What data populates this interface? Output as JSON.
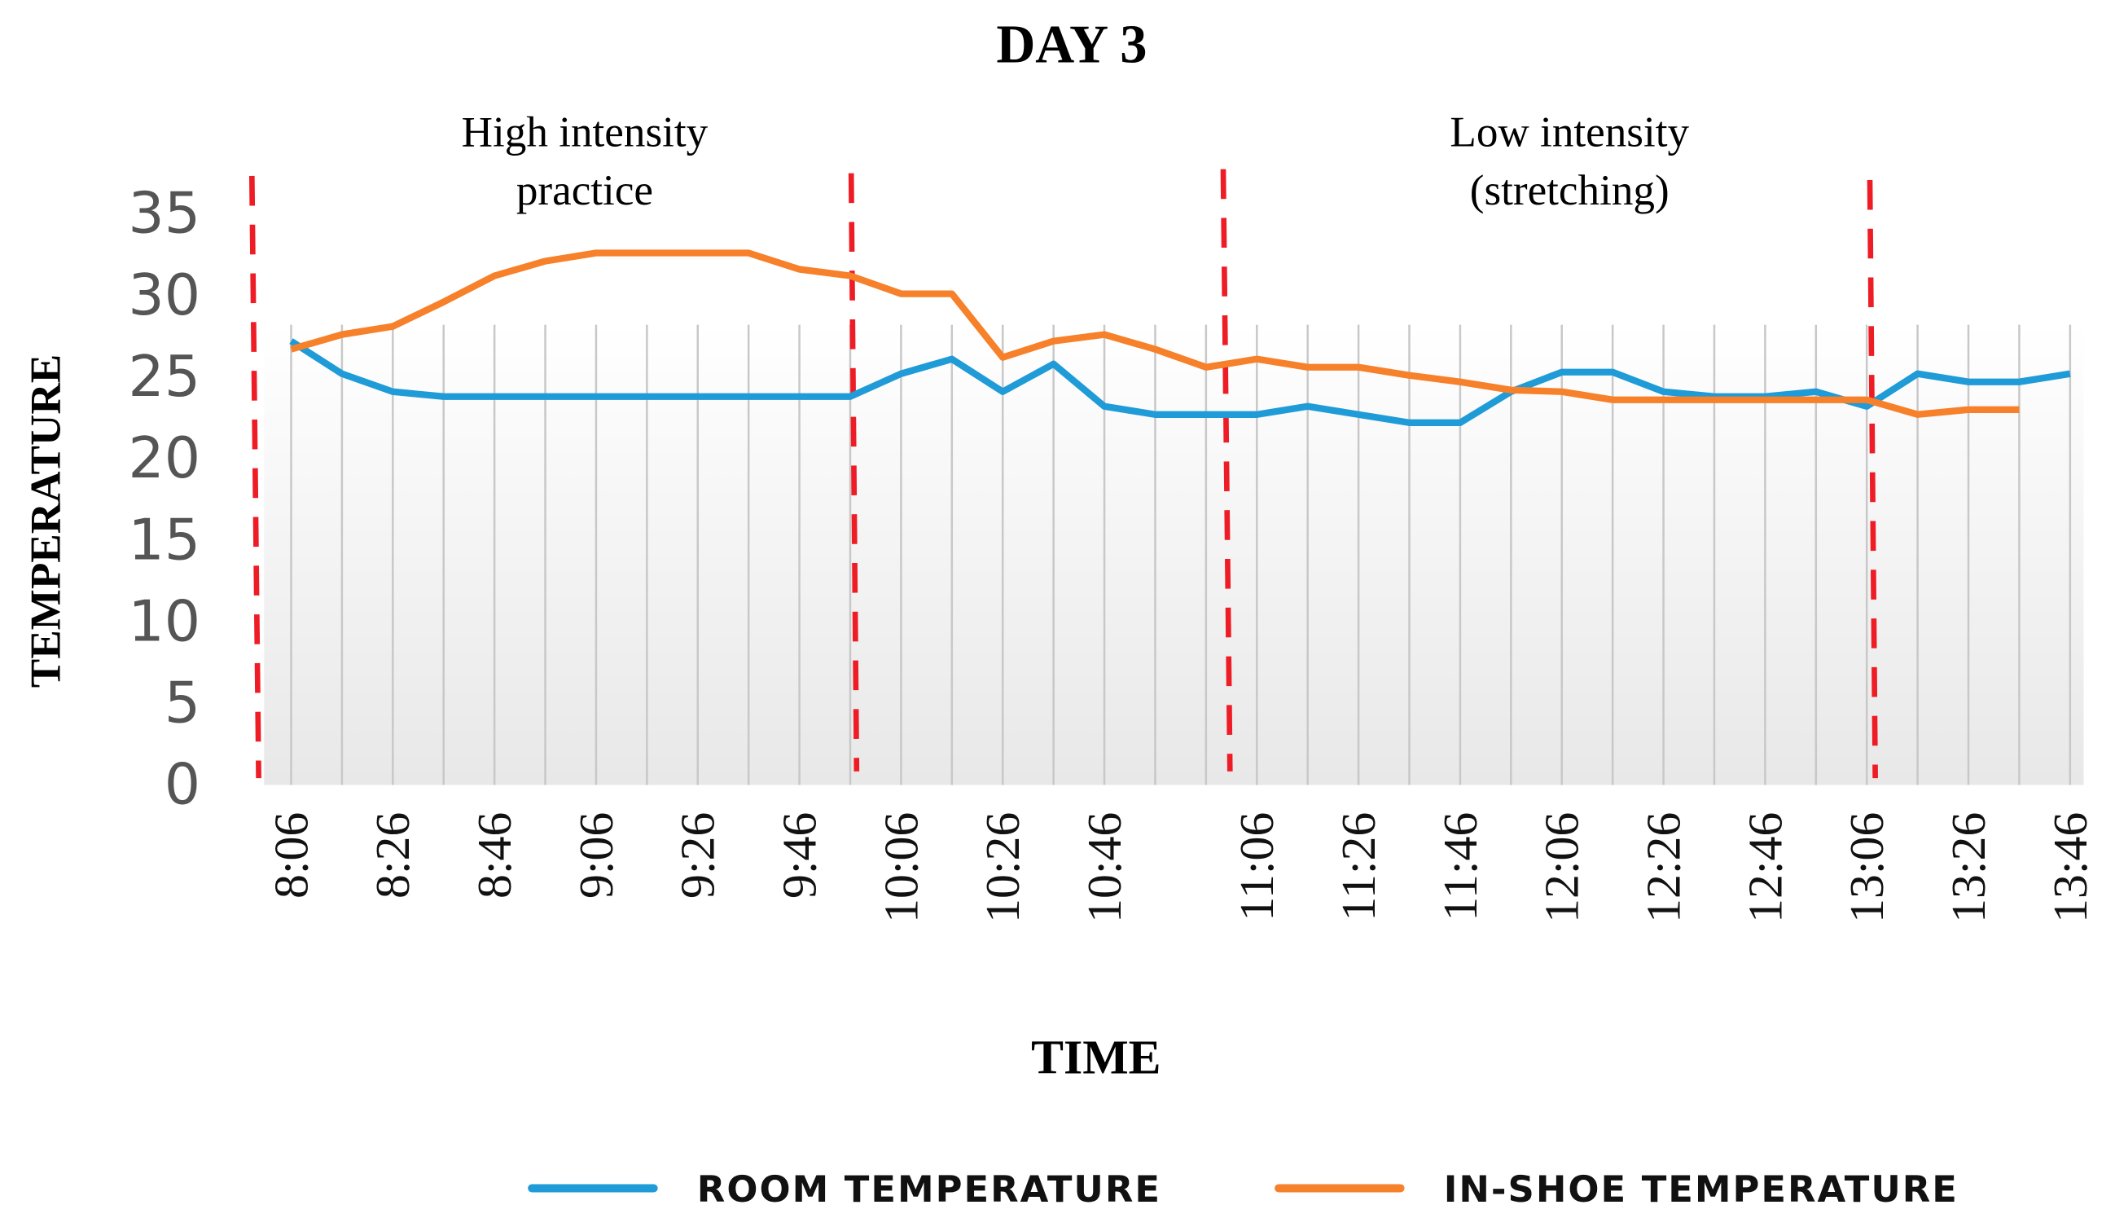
{
  "chart_data": {
    "type": "line",
    "title": "DAY 3",
    "annotations": [
      "High intensity",
      "practice",
      "Low intensity",
      "(stretching)"
    ],
    "x_label": "TIME",
    "y_label": "TEMPERATURE",
    "categories": [
      "8:06",
      null,
      "8:26",
      null,
      "8:46",
      null,
      "9:06",
      null,
      "9:26",
      null,
      "9:46",
      null,
      "10:06",
      null,
      "10:26",
      null,
      "10:46",
      null,
      null,
      "11:06",
      null,
      "11:26",
      null,
      "11:46",
      null,
      "12:06",
      null,
      "12:26",
      null,
      "12:46",
      null,
      "13:06",
      null,
      "13:26",
      null,
      "13:46"
    ],
    "series": [
      {
        "name": "ROOM TEMPERATURE",
        "color": "#1f9bd7",
        "values": [
          27.2,
          25.2,
          24.1,
          23.8,
          23.8,
          23.8,
          23.8,
          23.8,
          23.8,
          23.8,
          23.8,
          23.8,
          25.2,
          26.1,
          24.1,
          25.8,
          23.2,
          22.7,
          22.7,
          22.7,
          23.2,
          22.7,
          22.2,
          22.2,
          24.1,
          25.3,
          25.3,
          24.1,
          23.8,
          23.8,
          24.1,
          23.2,
          25.2,
          24.7,
          24.7,
          25.2
        ]
      },
      {
        "name": "IN-SHOE TEMPERATURE",
        "color": "#f7802a",
        "values": [
          26.7,
          27.6,
          28.1,
          29.6,
          31.2,
          32.1,
          32.6,
          32.6,
          32.6,
          32.6,
          31.6,
          31.2,
          30.1,
          30.1,
          26.2,
          27.2,
          27.6,
          26.7,
          25.6,
          26.1,
          25.6,
          25.6,
          25.1,
          24.7,
          24.2,
          24.1,
          23.6,
          23.6,
          23.6,
          23.6,
          23.6,
          23.6,
          22.7,
          23.0,
          23.0,
          null
        ]
      }
    ],
    "ylim": [
      0,
      35
    ],
    "yticks": [
      0,
      5,
      10,
      15,
      20,
      25,
      30,
      35
    ],
    "grid": true,
    "legend": "bottom"
  }
}
